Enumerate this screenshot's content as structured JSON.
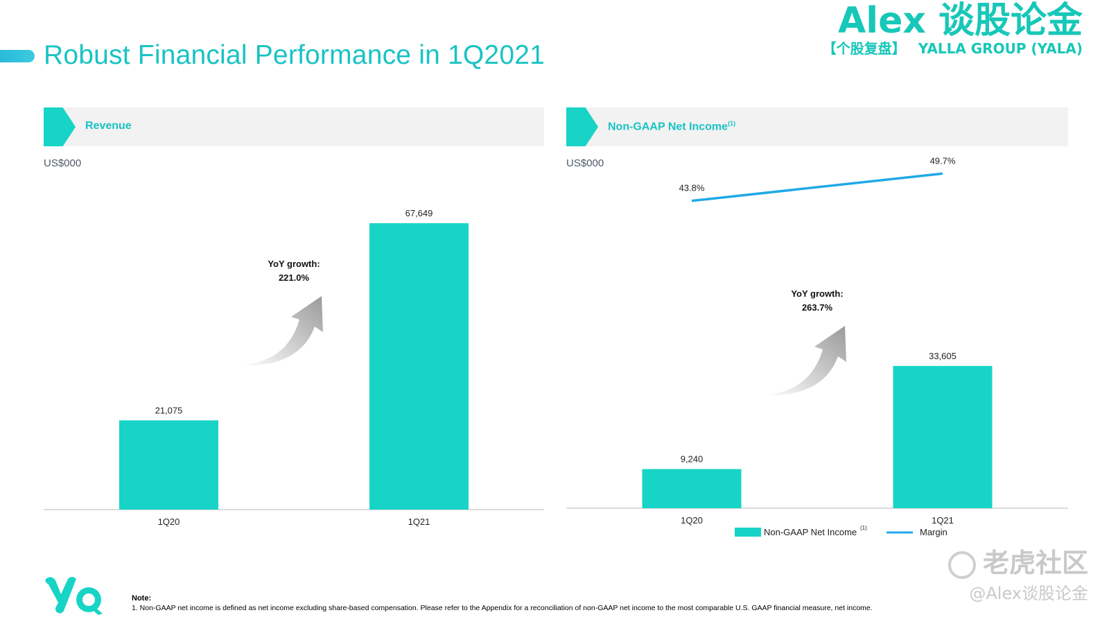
{
  "page": {
    "title": "Robust Financial Performance in 1Q2021"
  },
  "brand": {
    "name": "Alex 谈股论金",
    "subtitle_left": "【个股复盘】",
    "subtitle_right": "YALLA GROUP (YALA)"
  },
  "colors": {
    "accent": "#17d4c6",
    "title": "#19c3c4",
    "margin_line": "#1fa9e8",
    "growth_arrow": "#9a9a9a"
  },
  "chart_data": [
    {
      "type": "bar",
      "panel_title": "Revenue",
      "unit": "US$000",
      "categories": [
        "1Q20",
        "1Q21"
      ],
      "values": [
        21075,
        67649
      ],
      "data_labels": [
        "21,075",
        "67,649"
      ],
      "ylim": [
        0,
        75000
      ],
      "annotation": {
        "line1": "YoY growth:",
        "line2": "221.0%"
      },
      "legend": null
    },
    {
      "type": "bar",
      "panel_title": "Non-GAAP Net Income",
      "panel_title_sup": "(1)",
      "unit": "US$000",
      "categories": [
        "1Q20",
        "1Q21"
      ],
      "series": [
        {
          "name": "Non-GAAP Net Income",
          "values": [
            9240,
            33605
          ],
          "data_labels": [
            "9,240",
            "33,605"
          ],
          "kind": "bar"
        },
        {
          "name": "Margin",
          "values": [
            43.8,
            49.7
          ],
          "data_labels": [
            "43.8%",
            "49.7%"
          ],
          "kind": "line",
          "unit": "%"
        }
      ],
      "ylim": [
        0,
        75000
      ],
      "margin_ylim": [
        25,
        55
      ],
      "annotation": {
        "line1": "YoY growth:",
        "line2": "263.7%"
      },
      "legend": {
        "position": "bottom",
        "bar_label": "Non-GAAP Net Income",
        "bar_label_sup": "(1)",
        "line_label": "Margin"
      }
    }
  ],
  "footer": {
    "note_title": "Note:",
    "note_text": "1. Non-GAAP net income is defined as net income excluding share-based compensation. Please refer to the Appendix for a reconciliation of non-GAAP net income to the most comparable U.S. GAAP financial measure, net income."
  },
  "watermark": {
    "line1": "老虎社区",
    "line2": "@Alex谈股论金"
  }
}
